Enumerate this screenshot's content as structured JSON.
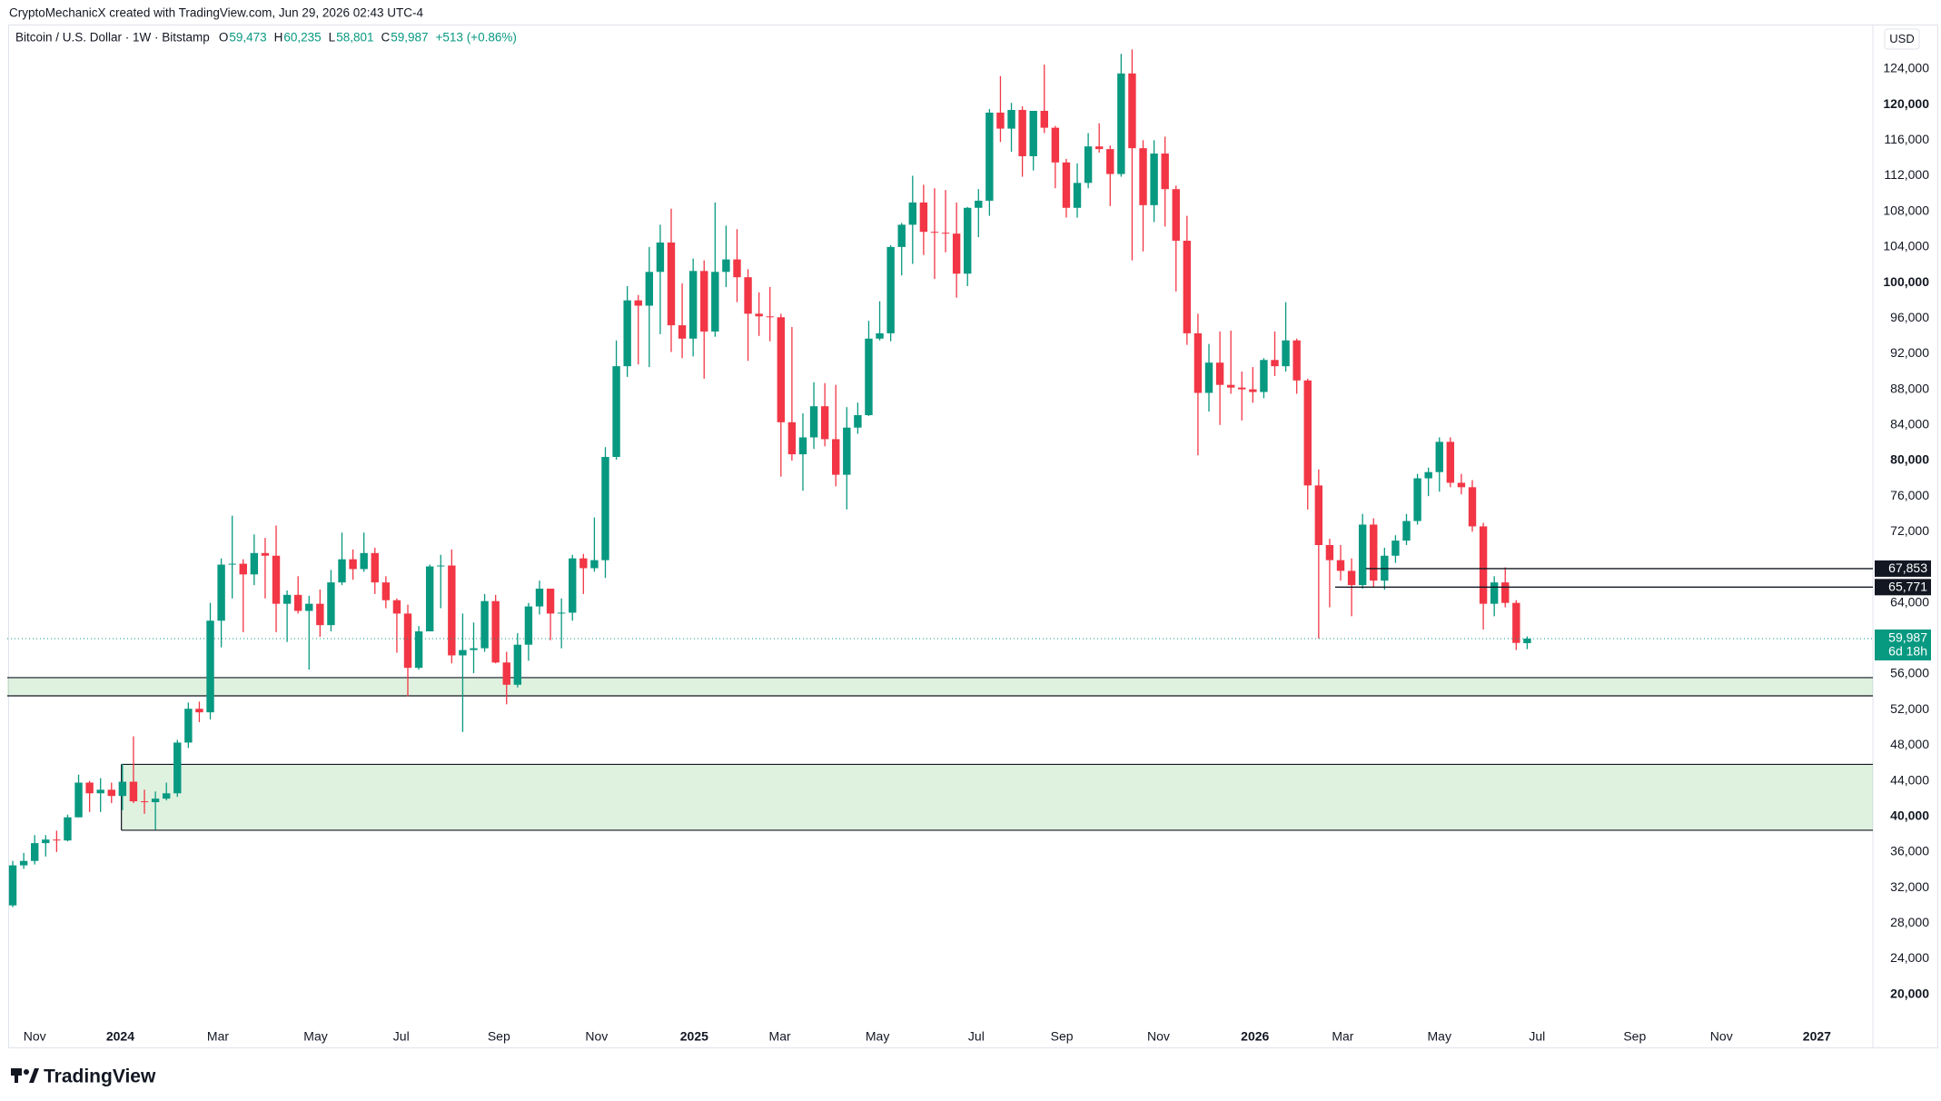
{
  "header": {
    "credit": "CryptoMechanicX created with TradingView.com, Jun 29, 2026 02:43 UTC-4",
    "symbol": "Bitcoin / U.S. Dollar · 1W · Bitstamp",
    "ohlc": [
      {
        "key": "O",
        "text": "59,473"
      },
      {
        "key": "H",
        "text": "60,235"
      },
      {
        "key": "L",
        "text": "58,801"
      },
      {
        "key": "C",
        "text": "59,987"
      }
    ],
    "change": "+513 (+0.86%)"
  },
  "footer": {
    "brand": "TradingView"
  },
  "chart_data": {
    "type": "candlestick",
    "currency": "USD",
    "up_color": "#089981",
    "down_color": "#f23645",
    "open": [
      30000,
      34500,
      35000,
      37000,
      37400,
      37300,
      39900,
      43800,
      42600,
      43000,
      42300,
      43900,
      41700,
      41600,
      42000,
      42600,
      48300,
      52100,
      51700,
      62000,
      68300,
      68400,
      67200,
      69600,
      69300,
      63900,
      64900,
      63100,
      63900,
      61500,
      66300,
      68900,
      67800,
      69600,
      66300,
      64300,
      62800,
      56700,
      60800,
      68100,
      68200,
      58100,
      58700,
      58900,
      64200,
      57300,
      54800,
      59300,
      63600,
      65600,
      62800,
      62900,
      69000,
      67900,
      68800,
      80400,
      90600,
      98000,
      97400,
      101200,
      104500,
      95200,
      93700,
      101300,
      94500,
      101200,
      102600,
      100600,
      96500,
      96200,
      96100,
      84300,
      80700,
      82600,
      86100,
      82400,
      78400,
      83700,
      85100,
      93700,
      94300,
      104000,
      106500,
      109000,
      105700,
      105600,
      105500,
      101000,
      108400,
      109200,
      119100,
      117300,
      119400,
      114200,
      119300,
      117400,
      113500,
      108400,
      111200,
      115300,
      115000,
      112200,
      123500,
      115100,
      108700,
      114500,
      110500,
      104700,
      94300,
      87600,
      91000,
      88500,
      88200,
      88000,
      87700,
      91300,
      90600,
      93500,
      89000,
      77200,
      70500,
      68800,
      67600,
      66000,
      72800,
      66500,
      69300,
      71000,
      73200,
      78000,
      78700,
      82100,
      77500,
      77000,
      72600,
      63900,
      66300,
      64000,
      59473
    ],
    "high": [
      35000,
      35900,
      37900,
      37900,
      38400,
      40200,
      44700,
      44000,
      44300,
      43800,
      45900,
      49000,
      43000,
      42800,
      43800,
      48600,
      52800,
      52900,
      64000,
      69000,
      73800,
      68900,
      71700,
      71300,
      72700,
      65400,
      67000,
      64800,
      65500,
      67700,
      71900,
      70000,
      71900,
      70200,
      67000,
      64500,
      63800,
      61400,
      68300,
      69400,
      70000,
      62800,
      61800,
      65000,
      64900,
      58500,
      60600,
      64000,
      66500,
      65600,
      64500,
      69400,
      69500,
      73600,
      81500,
      93500,
      99600,
      98600,
      104000,
      106500,
      108300,
      99900,
      102700,
      102500,
      109000,
      106400,
      106000,
      101500,
      98900,
      99500,
      96500,
      95000,
      85300,
      88800,
      88700,
      88500,
      86000,
      86500,
      95700,
      97900,
      104200,
      106700,
      112000,
      111000,
      110600,
      110400,
      109000,
      108500,
      110500,
      119500,
      123200,
      120200,
      119800,
      119300,
      124500,
      117600,
      113900,
      113400,
      116800,
      117900,
      115400,
      125700,
      126200,
      116000,
      116000,
      116400,
      110900,
      107500,
      96500,
      93100,
      94500,
      94600,
      90000,
      90500,
      91500,
      94500,
      97800,
      93700,
      89200,
      79000,
      71200,
      70500,
      69000,
      74000,
      73500,
      70200,
      71600,
      74000,
      78500,
      79200,
      82600,
      82600,
      78500,
      77800,
      73000,
      67000,
      68000,
      64300,
      60235
    ],
    "low": [
      29800,
      34100,
      34600,
      35500,
      36000,
      37200,
      39900,
      40500,
      40500,
      41500,
      40700,
      41500,
      40300,
      38500,
      41800,
      42200,
      47700,
      50600,
      50900,
      59000,
      64500,
      60700,
      66000,
      64500,
      60700,
      59600,
      62800,
      56500,
      60200,
      60800,
      66000,
      66600,
      67500,
      65000,
      63400,
      58400,
      53500,
      56500,
      60800,
      63400,
      57200,
      49500,
      56100,
      58500,
      57200,
      52600,
      54500,
      57500,
      62700,
      59800,
      58900,
      62000,
      65000,
      67500,
      66800,
      80100,
      89400,
      90800,
      90500,
      94200,
      92200,
      91500,
      91700,
      89200,
      93900,
      99500,
      97800,
      91200,
      94000,
      93400,
      78200,
      80000,
      76600,
      81300,
      81600,
      77100,
      74500,
      83000,
      85000,
      93500,
      93400,
      100800,
      102100,
      103100,
      100400,
      103400,
      98300,
      99600,
      105100,
      107500,
      115800,
      114700,
      111900,
      112600,
      116800,
      110600,
      107300,
      107300,
      110600,
      114600,
      108600,
      111900,
      102500,
      103500,
      106800,
      106300,
      99000,
      93000,
      80600,
      85500,
      84000,
      87500,
      84500,
      86500,
      87000,
      89500,
      90000,
      87500,
      74500,
      60000,
      63500,
      66500,
      62500,
      65600,
      65800,
      65500,
      68500,
      70500,
      72800,
      76000,
      76500,
      77000,
      76200,
      72000,
      61000,
      62500,
      63500,
      58700,
      58801
    ],
    "close": [
      34500,
      35000,
      37000,
      37400,
      37300,
      39900,
      43800,
      42600,
      43000,
      42300,
      43900,
      41700,
      41600,
      42000,
      42600,
      48300,
      52100,
      51700,
      62000,
      68300,
      68400,
      67200,
      69600,
      69300,
      63900,
      64900,
      63100,
      63900,
      61500,
      66300,
      68900,
      67800,
      69600,
      66300,
      64300,
      62800,
      56700,
      60800,
      68100,
      68200,
      58100,
      58700,
      58900,
      64200,
      57300,
      54800,
      59300,
      63600,
      65600,
      62800,
      62900,
      69000,
      67900,
      68800,
      80400,
      90600,
      98000,
      97400,
      101200,
      104500,
      95200,
      93700,
      101300,
      94500,
      101200,
      102600,
      100600,
      96500,
      96200,
      96100,
      84300,
      80700,
      82600,
      86100,
      82400,
      78400,
      83700,
      85100,
      93700,
      94300,
      104000,
      106500,
      109000,
      105700,
      105600,
      105500,
      101000,
      108400,
      109200,
      119100,
      117300,
      119400,
      114200,
      119300,
      117400,
      113500,
      108400,
      111200,
      115300,
      115000,
      112200,
      123500,
      115100,
      108700,
      114500,
      110500,
      104700,
      94300,
      87600,
      91000,
      88500,
      88200,
      88000,
      87700,
      91300,
      90600,
      93500,
      89000,
      77200,
      70500,
      68800,
      67600,
      66000,
      72800,
      66500,
      69300,
      71000,
      73200,
      78000,
      78700,
      82100,
      77500,
      77000,
      72600,
      63900,
      66300,
      64000,
      59500,
      59987
    ],
    "last_price_label": "59,987",
    "countdown": "6d 18h",
    "levels": [
      {
        "value": 67853,
        "label": "67,853",
        "x_start": 123.3
      },
      {
        "value": 65771,
        "label": "65,771",
        "x_start": 120.5
      }
    ],
    "zones": [
      {
        "low": 53550,
        "high": 55600
      },
      {
        "low": 38450,
        "high": 45850,
        "x_start": 9.9
      }
    ],
    "xlim": [
      -0.5,
      169.5
    ],
    "ylim": [
      16900,
      129000
    ],
    "xticks": [
      {
        "value": 2.0,
        "label": "Nov"
      },
      {
        "value": 9.8,
        "label": "2024"
      },
      {
        "value": 18.7,
        "label": "Mar"
      },
      {
        "value": 27.6,
        "label": "May"
      },
      {
        "value": 35.4,
        "label": "Jul"
      },
      {
        "value": 44.3,
        "label": "Sep"
      },
      {
        "value": 53.2,
        "label": "Nov"
      },
      {
        "value": 62.1,
        "label": "2025"
      },
      {
        "value": 69.9,
        "label": "Mar"
      },
      {
        "value": 78.8,
        "label": "May"
      },
      {
        "value": 87.8,
        "label": "Jul"
      },
      {
        "value": 95.6,
        "label": "Sep"
      },
      {
        "value": 104.4,
        "label": "Nov"
      },
      {
        "value": 113.2,
        "label": "2026"
      },
      {
        "value": 121.2,
        "label": "Mar"
      },
      {
        "value": 130.0,
        "label": "May"
      },
      {
        "value": 138.9,
        "label": "Jul"
      },
      {
        "value": 147.8,
        "label": "Sep"
      },
      {
        "value": 155.7,
        "label": "Nov"
      },
      {
        "value": 164.4,
        "label": "2027"
      }
    ],
    "yticks": [
      {
        "value": 20000,
        "label": "20,000"
      },
      {
        "value": 24000,
        "label": "24,000"
      },
      {
        "value": 28000,
        "label": "28,000"
      },
      {
        "value": 32000,
        "label": "32,000"
      },
      {
        "value": 36000,
        "label": "36,000"
      },
      {
        "value": 40000,
        "label": "40,000"
      },
      {
        "value": 44000,
        "label": "44,000"
      },
      {
        "value": 48000,
        "label": "48,000"
      },
      {
        "value": 52000,
        "label": "52,000"
      },
      {
        "value": 56000,
        "label": "56,000"
      },
      {
        "value": 60000,
        "label": "60,000"
      },
      {
        "value": 64000,
        "label": "64,000"
      },
      {
        "value": 68000,
        "label": "68,000"
      },
      {
        "value": 72000,
        "label": "72,000"
      },
      {
        "value": 76000,
        "label": "76,000"
      },
      {
        "value": 80000,
        "label": "80,000"
      },
      {
        "value": 84000,
        "label": "84,000"
      },
      {
        "value": 88000,
        "label": "88,000"
      },
      {
        "value": 92000,
        "label": "92,000"
      },
      {
        "value": 96000,
        "label": "96,000"
      },
      {
        "value": 100000,
        "label": "100,000"
      },
      {
        "value": 104000,
        "label": "104,000"
      },
      {
        "value": 108000,
        "label": "108,000"
      },
      {
        "value": 112000,
        "label": "112,000"
      },
      {
        "value": 116000,
        "label": "116,000"
      },
      {
        "value": 120000,
        "label": "120,000"
      },
      {
        "value": 124000,
        "label": "124,000"
      }
    ],
    "grid": false
  }
}
